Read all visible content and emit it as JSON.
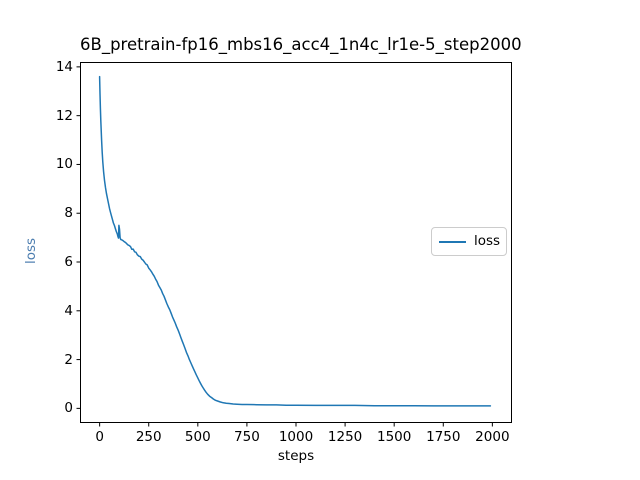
{
  "figure": {
    "background": "#ffffff"
  },
  "chart_data": {
    "type": "line",
    "title": "6B_pretrain-fp16_mbs16_acc4_1n4c_lr1e-5_step2000",
    "xlabel": "steps",
    "ylabel": "loss",
    "ylabel_color": "#4d7eb0",
    "line_color": "#1f77b4",
    "axis_color": "#000000",
    "grid": false,
    "xlim": [
      -100,
      2100
    ],
    "ylim": [
      -0.6,
      14.2
    ],
    "xticks": [
      0,
      250,
      500,
      750,
      1000,
      1250,
      1500,
      1750,
      2000
    ],
    "yticks": [
      0,
      2,
      4,
      6,
      8,
      10,
      12,
      14
    ],
    "legend": {
      "position": "center right",
      "entries": [
        {
          "label": "loss",
          "color": "#1f77b4"
        }
      ]
    },
    "series": [
      {
        "name": "loss",
        "points": [
          [
            0,
            13.6
          ],
          [
            2,
            12.9
          ],
          [
            4,
            12.3
          ],
          [
            6,
            11.8
          ],
          [
            8,
            11.4
          ],
          [
            10,
            11.0
          ],
          [
            13,
            10.5
          ],
          [
            16,
            10.1
          ],
          [
            20,
            9.7
          ],
          [
            25,
            9.35
          ],
          [
            30,
            9.05
          ],
          [
            35,
            8.8
          ],
          [
            40,
            8.6
          ],
          [
            45,
            8.4
          ],
          [
            50,
            8.2
          ],
          [
            55,
            8.05
          ],
          [
            60,
            7.9
          ],
          [
            65,
            7.75
          ],
          [
            70,
            7.6
          ],
          [
            75,
            7.5
          ],
          [
            80,
            7.38
          ],
          [
            85,
            7.25
          ],
          [
            90,
            7.15
          ],
          [
            93,
            7.05
          ],
          [
            96,
            6.98
          ],
          [
            98,
            7.5
          ],
          [
            101,
            7.35
          ],
          [
            104,
            7.0
          ],
          [
            108,
            6.92
          ],
          [
            115,
            6.9
          ],
          [
            120,
            6.87
          ],
          [
            126,
            6.83
          ],
          [
            132,
            6.8
          ],
          [
            138,
            6.75
          ],
          [
            144,
            6.7
          ],
          [
            150,
            6.68
          ],
          [
            157,
            6.63
          ],
          [
            164,
            6.52
          ],
          [
            171,
            6.53
          ],
          [
            178,
            6.42
          ],
          [
            185,
            6.4
          ],
          [
            192,
            6.3
          ],
          [
            200,
            6.24
          ],
          [
            207,
            6.22
          ],
          [
            214,
            6.12
          ],
          [
            221,
            6.08
          ],
          [
            228,
            6.0
          ],
          [
            235,
            5.92
          ],
          [
            242,
            5.88
          ],
          [
            250,
            5.75
          ],
          [
            257,
            5.68
          ],
          [
            264,
            5.6
          ],
          [
            271,
            5.5
          ],
          [
            278,
            5.42
          ],
          [
            285,
            5.3
          ],
          [
            292,
            5.2
          ],
          [
            300,
            5.05
          ],
          [
            307,
            4.95
          ],
          [
            314,
            4.85
          ],
          [
            321,
            4.7
          ],
          [
            328,
            4.6
          ],
          [
            335,
            4.45
          ],
          [
            342,
            4.3
          ],
          [
            350,
            4.15
          ],
          [
            357,
            4.05
          ],
          [
            364,
            3.9
          ],
          [
            371,
            3.75
          ],
          [
            378,
            3.62
          ],
          [
            385,
            3.5
          ],
          [
            392,
            3.35
          ],
          [
            400,
            3.2
          ],
          [
            407,
            3.05
          ],
          [
            414,
            2.9
          ],
          [
            421,
            2.75
          ],
          [
            428,
            2.6
          ],
          [
            435,
            2.45
          ],
          [
            442,
            2.3
          ],
          [
            450,
            2.15
          ],
          [
            457,
            2.0
          ],
          [
            464,
            1.88
          ],
          [
            471,
            1.75
          ],
          [
            478,
            1.62
          ],
          [
            485,
            1.5
          ],
          [
            492,
            1.38
          ],
          [
            500,
            1.25
          ],
          [
            507,
            1.13
          ],
          [
            514,
            1.02
          ],
          [
            521,
            0.92
          ],
          [
            528,
            0.83
          ],
          [
            535,
            0.74
          ],
          [
            542,
            0.66
          ],
          [
            550,
            0.58
          ],
          [
            560,
            0.5
          ],
          [
            570,
            0.44
          ],
          [
            580,
            0.38
          ],
          [
            590,
            0.33
          ],
          [
            600,
            0.3
          ],
          [
            615,
            0.26
          ],
          [
            630,
            0.23
          ],
          [
            645,
            0.21
          ],
          [
            660,
            0.2
          ],
          [
            680,
            0.18
          ],
          [
            700,
            0.17
          ],
          [
            725,
            0.16
          ],
          [
            750,
            0.16
          ],
          [
            800,
            0.15
          ],
          [
            850,
            0.14
          ],
          [
            900,
            0.14
          ],
          [
            950,
            0.13
          ],
          [
            1000,
            0.13
          ],
          [
            1100,
            0.12
          ],
          [
            1200,
            0.12
          ],
          [
            1300,
            0.12
          ],
          [
            1400,
            0.11
          ],
          [
            1500,
            0.11
          ],
          [
            1600,
            0.11
          ],
          [
            1700,
            0.1
          ],
          [
            1800,
            0.1
          ],
          [
            1900,
            0.1
          ],
          [
            1990,
            0.1
          ]
        ]
      }
    ]
  }
}
